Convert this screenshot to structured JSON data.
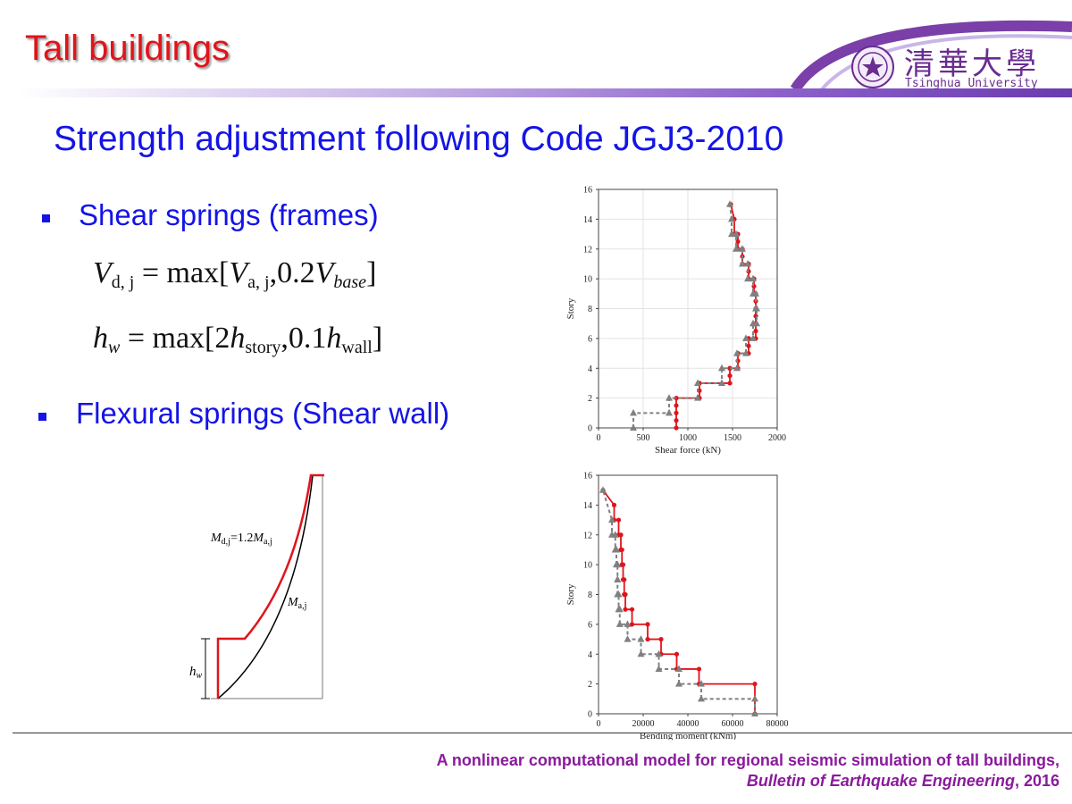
{
  "slide": {
    "title": "Tall buildings",
    "subtitle": "Strength adjustment following Code JGJ3-2010"
  },
  "logo": {
    "chinese": "清華大學",
    "english": "Tsinghua University"
  },
  "bullets": [
    {
      "text": "Shear springs (frames)"
    },
    {
      "text": "Flexural springs (Shear wall)"
    }
  ],
  "equations": {
    "eq1": {
      "lhs": "V",
      "lhs_sub": "d, j",
      "op": "= max[",
      "t1": "V",
      "t1_sub": "a, j",
      "mid": ",0.2",
      "t2": "V",
      "t2_sub": "base",
      "end": "]"
    },
    "eq2": {
      "lhs": "h",
      "lhs_sub": "w",
      "op": "= max[2",
      "t1": "h",
      "t1_sub": "story",
      "mid": ",0.1",
      "t2": "h",
      "t2_sub": "wall",
      "end": "]"
    }
  },
  "diagram": {
    "label_upper_main": "M",
    "label_upper_sub1": "d,j",
    "label_upper_mid": "=1.2",
    "label_upper_main2": "M",
    "label_upper_sub2": "a,j",
    "label_lower_main": "M",
    "label_lower_sub": "a,j",
    "label_hw_main": "h",
    "label_hw_sub": "w",
    "colors": {
      "red": "#e0141b",
      "black": "#000000"
    }
  },
  "chart_data": [
    {
      "type": "line",
      "xlabel": "Shear force (kN)",
      "ylabel": "Story",
      "xlim": [
        0,
        2000
      ],
      "ylim": [
        0,
        16
      ],
      "xticks": [
        0,
        500,
        1000,
        1500,
        2000
      ],
      "yticks": [
        0,
        2,
        4,
        6,
        8,
        10,
        12,
        14,
        16
      ],
      "grid": true,
      "series": [
        {
          "style": "red-solid-circle",
          "color": "#e0141b",
          "x": [
            870,
            870,
            870,
            870,
            870,
            1130,
            1130,
            1130,
            1130,
            1470,
            1470,
            1470,
            1470,
            1560,
            1560,
            1560,
            1560,
            1680,
            1680,
            1680,
            1680,
            1760,
            1760,
            1760,
            1760,
            1760,
            1760,
            1760,
            1760,
            1740,
            1740,
            1740,
            1740,
            1680,
            1680,
            1680,
            1680,
            1610,
            1610,
            1610,
            1610,
            1560,
            1560,
            1560,
            1560,
            1520,
            1520,
            1480
          ],
          "y": [
            0,
            0.5,
            1,
            1.5,
            2,
            2,
            2.5,
            3,
            3,
            3,
            3.5,
            4,
            4,
            4,
            4.5,
            5,
            5,
            5,
            5.5,
            6,
            6,
            6,
            6.5,
            7,
            7,
            7.5,
            8,
            8.5,
            9,
            9,
            9.5,
            10,
            10,
            10,
            10.5,
            11,
            11,
            11,
            11.5,
            12,
            12,
            12,
            12.5,
            13,
            13,
            13,
            14,
            15
          ]
        },
        {
          "style": "gray-dashed-triangle",
          "color": "#808080",
          "x": [
            390,
            390,
            790,
            790,
            1110,
            1110,
            1380,
            1380,
            1550,
            1550,
            1650,
            1650,
            1730,
            1730,
            1770,
            1770,
            1760,
            1760,
            1730,
            1730,
            1670,
            1670,
            1610,
            1610,
            1540,
            1540,
            1490,
            1490,
            1470
          ],
          "y": [
            0,
            1,
            1,
            2,
            2,
            3,
            3,
            4,
            4,
            5,
            5,
            6,
            6,
            7,
            7,
            8,
            8,
            9,
            9,
            10,
            10,
            11,
            11,
            12,
            12,
            13,
            13,
            14,
            15
          ]
        }
      ]
    },
    {
      "type": "line",
      "xlabel": "Bending moment (kNm)",
      "ylabel": "Story",
      "xlim": [
        0,
        80000
      ],
      "ylim": [
        0,
        16
      ],
      "xticks": [
        0,
        20000,
        40000,
        60000,
        80000
      ],
      "yticks": [
        0,
        2,
        4,
        6,
        8,
        10,
        12,
        14,
        16
      ],
      "grid": false,
      "series": [
        {
          "style": "red-solid-circle",
          "color": "#e0141b",
          "x": [
            70000,
            70000,
            45000,
            45000,
            35000,
            35000,
            28000,
            28000,
            22000,
            22000,
            15000,
            15000,
            12000,
            12000,
            11500,
            11500,
            11000,
            11000,
            10500,
            10500,
            10000,
            10000,
            9000,
            9000,
            7000,
            7000,
            2000
          ],
          "y": [
            0,
            2,
            2,
            3,
            3,
            4,
            4,
            5,
            5,
            6,
            6,
            7,
            7,
            8,
            8,
            9,
            9,
            10,
            10,
            11,
            11,
            12,
            12,
            13,
            13,
            14,
            15
          ]
        },
        {
          "style": "gray-dashed-triangle",
          "color": "#808080",
          "x": [
            70000,
            70000,
            46000,
            46000,
            36000,
            36000,
            27000,
            27000,
            19000,
            19000,
            13000,
            13000,
            9500,
            9500,
            9000,
            9000,
            8500,
            8500,
            8500,
            8500,
            8000,
            8000,
            7500,
            7500,
            6000,
            6000,
            2000
          ],
          "y": [
            0,
            1,
            1,
            2,
            2,
            3,
            3,
            4,
            4,
            5,
            5,
            6,
            6,
            7,
            7,
            8,
            8,
            9,
            9,
            10,
            10,
            11,
            11,
            12,
            12,
            13,
            15
          ]
        }
      ]
    }
  ],
  "citation": {
    "line1": "A nonlinear computational model for regional seismic simulation of tall buildings,",
    "journal": "Bulletin of Earthquake Engineering",
    "year": ", 2016"
  }
}
